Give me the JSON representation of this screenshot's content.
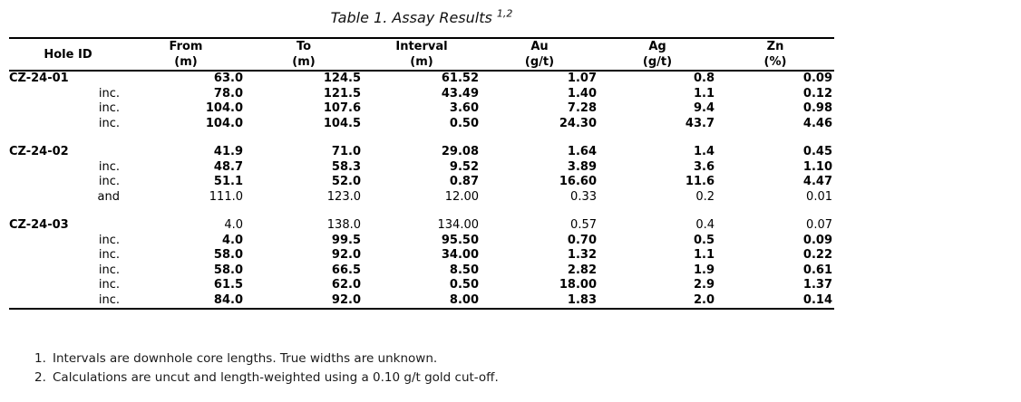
{
  "title": {
    "text": "Table 1. Assay Results ",
    "superscript": "1,2"
  },
  "table": {
    "columns": [
      {
        "label": "Hole ID",
        "unit": ""
      },
      {
        "label": "From",
        "unit": "(m)"
      },
      {
        "label": "To",
        "unit": "(m)"
      },
      {
        "label": "Interval",
        "unit": "(m)"
      },
      {
        "label": "Au",
        "unit": "(g/t)"
      },
      {
        "label": "Ag",
        "unit": "(g/t)"
      },
      {
        "label": "Zn",
        "unit": "(%)"
      }
    ],
    "groups": [
      {
        "hole_id": "CZ-24-01",
        "rows": [
          {
            "qualifier": "",
            "from": "63.0",
            "to": "124.5",
            "interval": "61.52",
            "au": "1.07",
            "ag": "0.8",
            "zn": "0.09",
            "bold": true
          },
          {
            "qualifier": "inc.",
            "from": "78.0",
            "to": "121.5",
            "interval": "43.49",
            "au": "1.40",
            "ag": "1.1",
            "zn": "0.12",
            "bold": true
          },
          {
            "qualifier": "inc.",
            "from": "104.0",
            "to": "107.6",
            "interval": "3.60",
            "au": "7.28",
            "ag": "9.4",
            "zn": "0.98",
            "bold": true
          },
          {
            "qualifier": "inc.",
            "from": "104.0",
            "to": "104.5",
            "interval": "0.50",
            "au": "24.30",
            "ag": "43.7",
            "zn": "4.46",
            "bold": true
          }
        ]
      },
      {
        "hole_id": "CZ-24-02",
        "rows": [
          {
            "qualifier": "",
            "from": "41.9",
            "to": "71.0",
            "interval": "29.08",
            "au": "1.64",
            "ag": "1.4",
            "zn": "0.45",
            "bold": true
          },
          {
            "qualifier": "inc.",
            "from": "48.7",
            "to": "58.3",
            "interval": "9.52",
            "au": "3.89",
            "ag": "3.6",
            "zn": "1.10",
            "bold": true
          },
          {
            "qualifier": "inc.",
            "from": "51.1",
            "to": "52.0",
            "interval": "0.87",
            "au": "16.60",
            "ag": "11.6",
            "zn": "4.47",
            "bold": true
          },
          {
            "qualifier": "and",
            "from": "111.0",
            "to": "123.0",
            "interval": "12.00",
            "au": "0.33",
            "ag": "0.2",
            "zn": "0.01",
            "bold": false
          }
        ]
      },
      {
        "hole_id": "CZ-24-03",
        "rows": [
          {
            "qualifier": "",
            "from": "4.0",
            "to": "138.0",
            "interval": "134.00",
            "au": "0.57",
            "ag": "0.4",
            "zn": "0.07",
            "bold": false
          },
          {
            "qualifier": "inc.",
            "from": "4.0",
            "to": "99.5",
            "interval": "95.50",
            "au": "0.70",
            "ag": "0.5",
            "zn": "0.09",
            "bold": true
          },
          {
            "qualifier": "inc.",
            "from": "58.0",
            "to": "92.0",
            "interval": "34.00",
            "au": "1.32",
            "ag": "1.1",
            "zn": "0.22",
            "bold": true
          },
          {
            "qualifier": "inc.",
            "from": "58.0",
            "to": "66.5",
            "interval": "8.50",
            "au": "2.82",
            "ag": "1.9",
            "zn": "0.61",
            "bold": true
          },
          {
            "qualifier": "inc.",
            "from": "61.5",
            "to": "62.0",
            "interval": "0.50",
            "au": "18.00",
            "ag": "2.9",
            "zn": "1.37",
            "bold": true
          },
          {
            "qualifier": "inc.",
            "from": "84.0",
            "to": "92.0",
            "interval": "8.00",
            "au": "1.83",
            "ag": "2.0",
            "zn": "0.14",
            "bold": true
          }
        ]
      }
    ]
  },
  "footnotes": [
    {
      "num": "1.",
      "text": "Intervals are downhole core lengths. True widths are unknown."
    },
    {
      "num": "2.",
      "text": "Calculations are uncut and length-weighted using a 0.10 g/t gold cut-off."
    }
  ]
}
